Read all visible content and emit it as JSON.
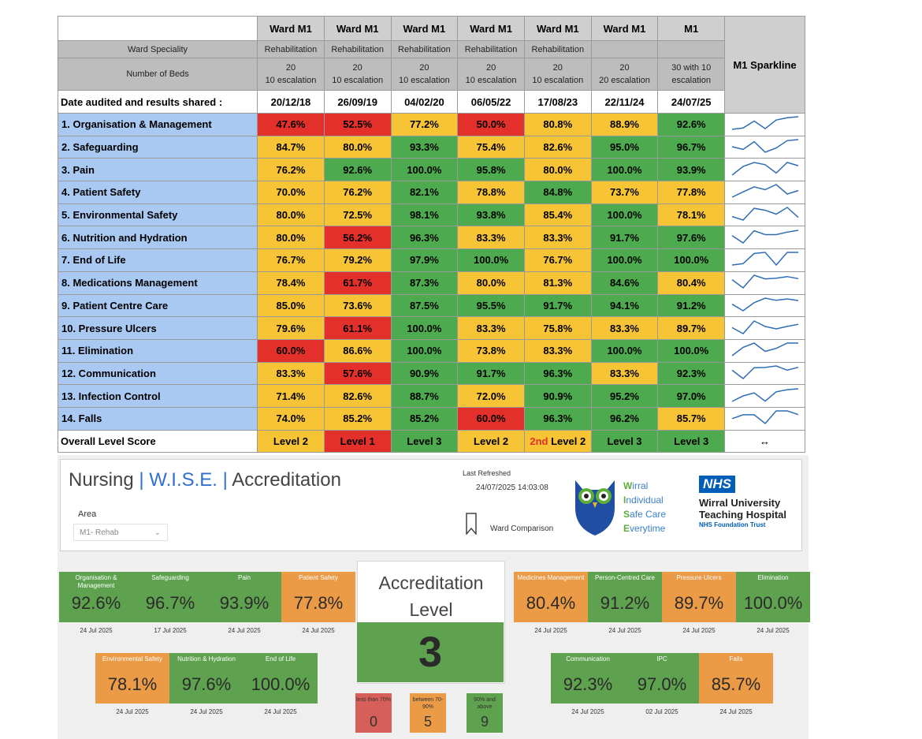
{
  "table": {
    "sparkline_header": "M1 Sparkline",
    "ward_headers": [
      "Ward M1",
      "Ward M1",
      "Ward M1",
      "Ward M1",
      "Ward M1",
      "Ward M1",
      "M1"
    ],
    "speciality_label": "Ward Speciality",
    "speciality": [
      "Rehabilitation",
      "Rehabilitation",
      "Rehabilitation",
      "Rehabilitation",
      "Rehabilitation",
      "",
      ""
    ],
    "beds_label": "Number of Beds",
    "beds_line1": [
      "20",
      "20",
      "20",
      "20",
      "20",
      "20",
      "30 with 10"
    ],
    "beds_line2": [
      "10 escalation",
      "10 escalation",
      "10 escalation",
      "10 escalation",
      "10 escalation",
      "20 escalation",
      "escalation"
    ],
    "date_label": "Date audited and results shared :",
    "dates": [
      "20/12/18",
      "26/09/19",
      "04/02/20",
      "06/05/22",
      "17/08/23",
      "22/11/24",
      "24/07/25"
    ],
    "rows": [
      {
        "label": "1.   Organisation & Management",
        "values": [
          "47.6%",
          "52.5%",
          "77.2%",
          "50.0%",
          "80.8%",
          "88.9%",
          "92.6%"
        ],
        "status": [
          "red",
          "red",
          "amber",
          "red",
          "amber",
          "amber",
          "green"
        ],
        "trend": [
          47.6,
          52.5,
          77.2,
          50.0,
          80.8,
          88.9,
          92.6
        ]
      },
      {
        "label": "2.   Safeguarding",
        "values": [
          "84.7%",
          "80.0%",
          "93.3%",
          "75.4%",
          "82.6%",
          "95.0%",
          "96.7%"
        ],
        "status": [
          "amber",
          "amber",
          "green",
          "amber",
          "amber",
          "green",
          "green"
        ],
        "trend": [
          84.7,
          80.0,
          93.3,
          75.4,
          82.6,
          95.0,
          96.7
        ]
      },
      {
        "label": "3.   Pain",
        "values": [
          "76.2%",
          "92.6%",
          "100.0%",
          "95.8%",
          "80.0%",
          "100.0%",
          "93.9%"
        ],
        "status": [
          "amber",
          "green",
          "green",
          "green",
          "amber",
          "green",
          "green"
        ],
        "trend": [
          76.2,
          92.6,
          100.0,
          95.8,
          80.0,
          100.0,
          93.9
        ]
      },
      {
        "label": "4.   Patient Safety",
        "values": [
          "70.0%",
          "76.2%",
          "82.1%",
          "78.8%",
          "84.8%",
          "73.7%",
          "77.8%"
        ],
        "status": [
          "amber",
          "amber",
          "green",
          "amber",
          "green",
          "amber",
          "amber"
        ],
        "trend": [
          70.0,
          76.2,
          82.1,
          78.8,
          84.8,
          73.7,
          77.8
        ]
      },
      {
        "label": "5.   Environmental Safety",
        "values": [
          "80.0%",
          "72.5%",
          "98.1%",
          "93.8%",
          "85.4%",
          "100.0%",
          "78.1%"
        ],
        "status": [
          "amber",
          "amber",
          "green",
          "green",
          "amber",
          "green",
          "amber"
        ],
        "trend": [
          80.0,
          72.5,
          98.1,
          93.8,
          85.4,
          100.0,
          78.1
        ]
      },
      {
        "label": "6.   Nutrition and Hydration",
        "values": [
          "80.0%",
          "56.2%",
          "96.3%",
          "83.3%",
          "83.3%",
          "91.7%",
          "97.6%"
        ],
        "status": [
          "amber",
          "red",
          "green",
          "amber",
          "amber",
          "green",
          "green"
        ],
        "trend": [
          80.0,
          56.2,
          96.3,
          83.3,
          83.3,
          91.7,
          97.6
        ]
      },
      {
        "label": "7.   End of Life",
        "values": [
          "76.7%",
          "79.2%",
          "97.9%",
          "100.0%",
          "76.7%",
          "100.0%",
          "100.0%"
        ],
        "status": [
          "amber",
          "amber",
          "green",
          "green",
          "amber",
          "green",
          "green"
        ],
        "trend": [
          76.7,
          79.2,
          97.9,
          100.0,
          76.7,
          100.0,
          100.0
        ]
      },
      {
        "label": "8.   Medications Management",
        "values": [
          "78.4%",
          "61.7%",
          "87.3%",
          "80.0%",
          "81.3%",
          "84.6%",
          "80.4%"
        ],
        "status": [
          "amber",
          "red",
          "green",
          "amber",
          "amber",
          "green",
          "amber"
        ],
        "trend": [
          78.4,
          61.7,
          87.3,
          80.0,
          81.3,
          84.6,
          80.4
        ]
      },
      {
        "label": "9.   Patient Centre Care",
        "values": [
          "85.0%",
          "73.6%",
          "87.5%",
          "95.5%",
          "91.7%",
          "94.1%",
          "91.2%"
        ],
        "status": [
          "amber",
          "amber",
          "green",
          "green",
          "green",
          "green",
          "green"
        ],
        "trend": [
          85.0,
          73.6,
          87.5,
          95.5,
          91.7,
          94.1,
          91.2
        ]
      },
      {
        "label": "10.  Pressure Ulcers",
        "values": [
          "79.6%",
          "61.1%",
          "100.0%",
          "83.3%",
          "75.8%",
          "83.3%",
          "89.7%"
        ],
        "status": [
          "amber",
          "red",
          "green",
          "amber",
          "amber",
          "amber",
          "amber"
        ],
        "trend": [
          79.6,
          61.1,
          100.0,
          83.3,
          75.8,
          83.3,
          89.7
        ]
      },
      {
        "label": "11.  Elimination",
        "values": [
          "60.0%",
          "86.6%",
          "100.0%",
          "73.8%",
          "83.3%",
          "100.0%",
          "100.0%"
        ],
        "status": [
          "red",
          "amber",
          "green",
          "amber",
          "amber",
          "green",
          "green"
        ],
        "trend": [
          60.0,
          86.6,
          100.0,
          73.8,
          83.3,
          100.0,
          100.0
        ]
      },
      {
        "label": "12.  Communication",
        "values": [
          "83.3%",
          "57.6%",
          "90.9%",
          "91.7%",
          "96.3%",
          "83.3%",
          "92.3%"
        ],
        "status": [
          "amber",
          "red",
          "green",
          "green",
          "green",
          "amber",
          "green"
        ],
        "trend": [
          83.3,
          57.6,
          90.9,
          91.7,
          96.3,
          83.3,
          92.3
        ]
      },
      {
        "label": "13.  Infection Control",
        "values": [
          "71.4%",
          "82.6%",
          "88.7%",
          "72.0%",
          "90.9%",
          "95.2%",
          "97.0%"
        ],
        "status": [
          "amber",
          "amber",
          "green",
          "amber",
          "green",
          "green",
          "green"
        ],
        "trend": [
          71.4,
          82.6,
          88.7,
          72.0,
          90.9,
          95.2,
          97.0
        ]
      },
      {
        "label": "14.  Falls",
        "values": [
          "74.0%",
          "85.2%",
          "85.2%",
          "60.0%",
          "96.3%",
          "96.2%",
          "85.7%"
        ],
        "status": [
          "amber",
          "amber",
          "green",
          "red",
          "green",
          "green",
          "amber"
        ],
        "trend": [
          74.0,
          85.2,
          85.2,
          60.0,
          96.3,
          96.2,
          85.7
        ]
      }
    ],
    "level_label": "Overall Level Score",
    "levels": [
      "Level 2",
      "Level 1",
      "Level 3",
      "Level 2",
      "Level 2",
      "Level 3",
      "Level 3"
    ],
    "level_status": [
      "amber",
      "red",
      "green",
      "amber",
      "amber",
      "green",
      "green"
    ],
    "level_prefix_col5": "2nd",
    "level_trend_symbol": "↔"
  },
  "dashboard": {
    "title_part1": "Nursing",
    "title_sep": "|",
    "title_wise": "W.I.S.E.",
    "title_part3": "Accreditation",
    "area_label": "Area",
    "area_value": "M1- Rehab",
    "last_refreshed_label": "Last Refreshed",
    "last_refreshed_value": "24/07/2025 14:03:08",
    "ward_comparison": "Ward Comparison",
    "wise_w": "W",
    "wise_w_rest": "irral",
    "wise_i": "I",
    "wise_i_rest": "ndividual",
    "wise_s": "S",
    "wise_s_rest": "afe Care",
    "wise_e": "E",
    "wise_e_rest": "verytime",
    "nhs_badge": "NHS",
    "nhs_line1": "Wirral University",
    "nhs_line2": "Teaching Hospital",
    "nhs_line3": "NHS Foundation Trust",
    "tiles_left_top": [
      {
        "label": "Organisation & Management",
        "value": "92.6%",
        "date": "24 Jul 2025",
        "color": "g"
      },
      {
        "label": "Safeguarding",
        "value": "96.7%",
        "date": "17 Jul 2025",
        "color": "g"
      },
      {
        "label": "Pain",
        "value": "93.9%",
        "date": "24 Jul 2025",
        "color": "g"
      },
      {
        "label": "Patient Safety",
        "value": "77.8%",
        "date": "24 Jul 2025",
        "color": "o"
      }
    ],
    "tiles_left_bottom": [
      {
        "label": "Environmental Safety",
        "value": "78.1%",
        "date": "24 Jul 2025",
        "color": "o"
      },
      {
        "label": "Nutrition & Hydration",
        "value": "97.6%",
        "date": "24 Jul 2025",
        "color": "g"
      },
      {
        "label": "End of Life",
        "value": "100.0%",
        "date": "24 Jul 2025",
        "color": "g"
      }
    ],
    "tiles_right_top": [
      {
        "label": "Medicines Management",
        "value": "80.4%",
        "date": "24 Jul 2025",
        "color": "o"
      },
      {
        "label": "Person-Centred Care",
        "value": "91.2%",
        "date": "24 Jul 2025",
        "color": "g"
      },
      {
        "label": "Pressure Ulcers",
        "value": "89.7%",
        "date": "24 Jul 2025",
        "color": "o"
      },
      {
        "label": "Elimination",
        "value": "100.0%",
        "date": "24 Jul 2025",
        "color": "g"
      }
    ],
    "tiles_right_bottom": [
      {
        "label": "Communication",
        "value": "92.3%",
        "date": "24 Jul 2025",
        "color": "g"
      },
      {
        "label": "IPC",
        "value": "97.0%",
        "date": "02 Jul 2025",
        "color": "g"
      },
      {
        "label": "Falls",
        "value": "85.7%",
        "date": "24 Jul 2025",
        "color": "o"
      }
    ],
    "accreditation_title": "Accreditation Level",
    "accreditation_level": "3",
    "mini": [
      {
        "label": "less than 70%",
        "value": "0",
        "color": "r"
      },
      {
        "label": "between 70-90%",
        "value": "5",
        "color": "o"
      },
      {
        "label": "90% and above",
        "value": "9",
        "color": "g"
      }
    ]
  },
  "colors": {
    "red": "#e4302b",
    "amber": "#f7c436",
    "green": "#4eaa4e",
    "label_blue": "#a9c9f2",
    "nhs_blue": "#005eb8",
    "tile_green": "#5ea14e",
    "tile_orange": "#eb9a45"
  }
}
